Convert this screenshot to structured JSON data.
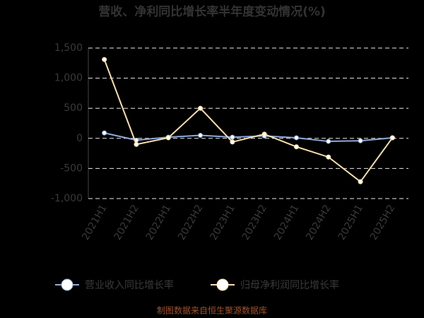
{
  "chart_data": {
    "type": "line",
    "title": "营收、净利同比增长率半年度变动情况(%)",
    "categories": [
      "2021H1",
      "2021H2",
      "2022H1",
      "2022H2",
      "2023H1",
      "2023H2",
      "2024H1",
      "2024H2",
      "2025H1",
      "2025H2"
    ],
    "series": [
      {
        "name": "营业收入同比增长率",
        "color": "#8faadc",
        "values": [
          90,
          -30,
          20,
          50,
          20,
          40,
          10,
          -50,
          -40,
          10
        ]
      },
      {
        "name": "归母净利润同比增长率",
        "color": "#f8dfa8",
        "values": [
          1310,
          -100,
          10,
          500,
          -60,
          70,
          -140,
          -310,
          -720,
          10
        ]
      }
    ],
    "ylim": [
      -1000,
      1500
    ],
    "yticks": [
      {
        "value": -1000,
        "label": "-1,000"
      },
      -500,
      0,
      500,
      {
        "value": 1000,
        "label": "1,000"
      },
      {
        "value": 1500,
        "label": "1,500"
      }
    ],
    "grid": true,
    "footer": "制图数据来自恒生聚源数据库"
  }
}
